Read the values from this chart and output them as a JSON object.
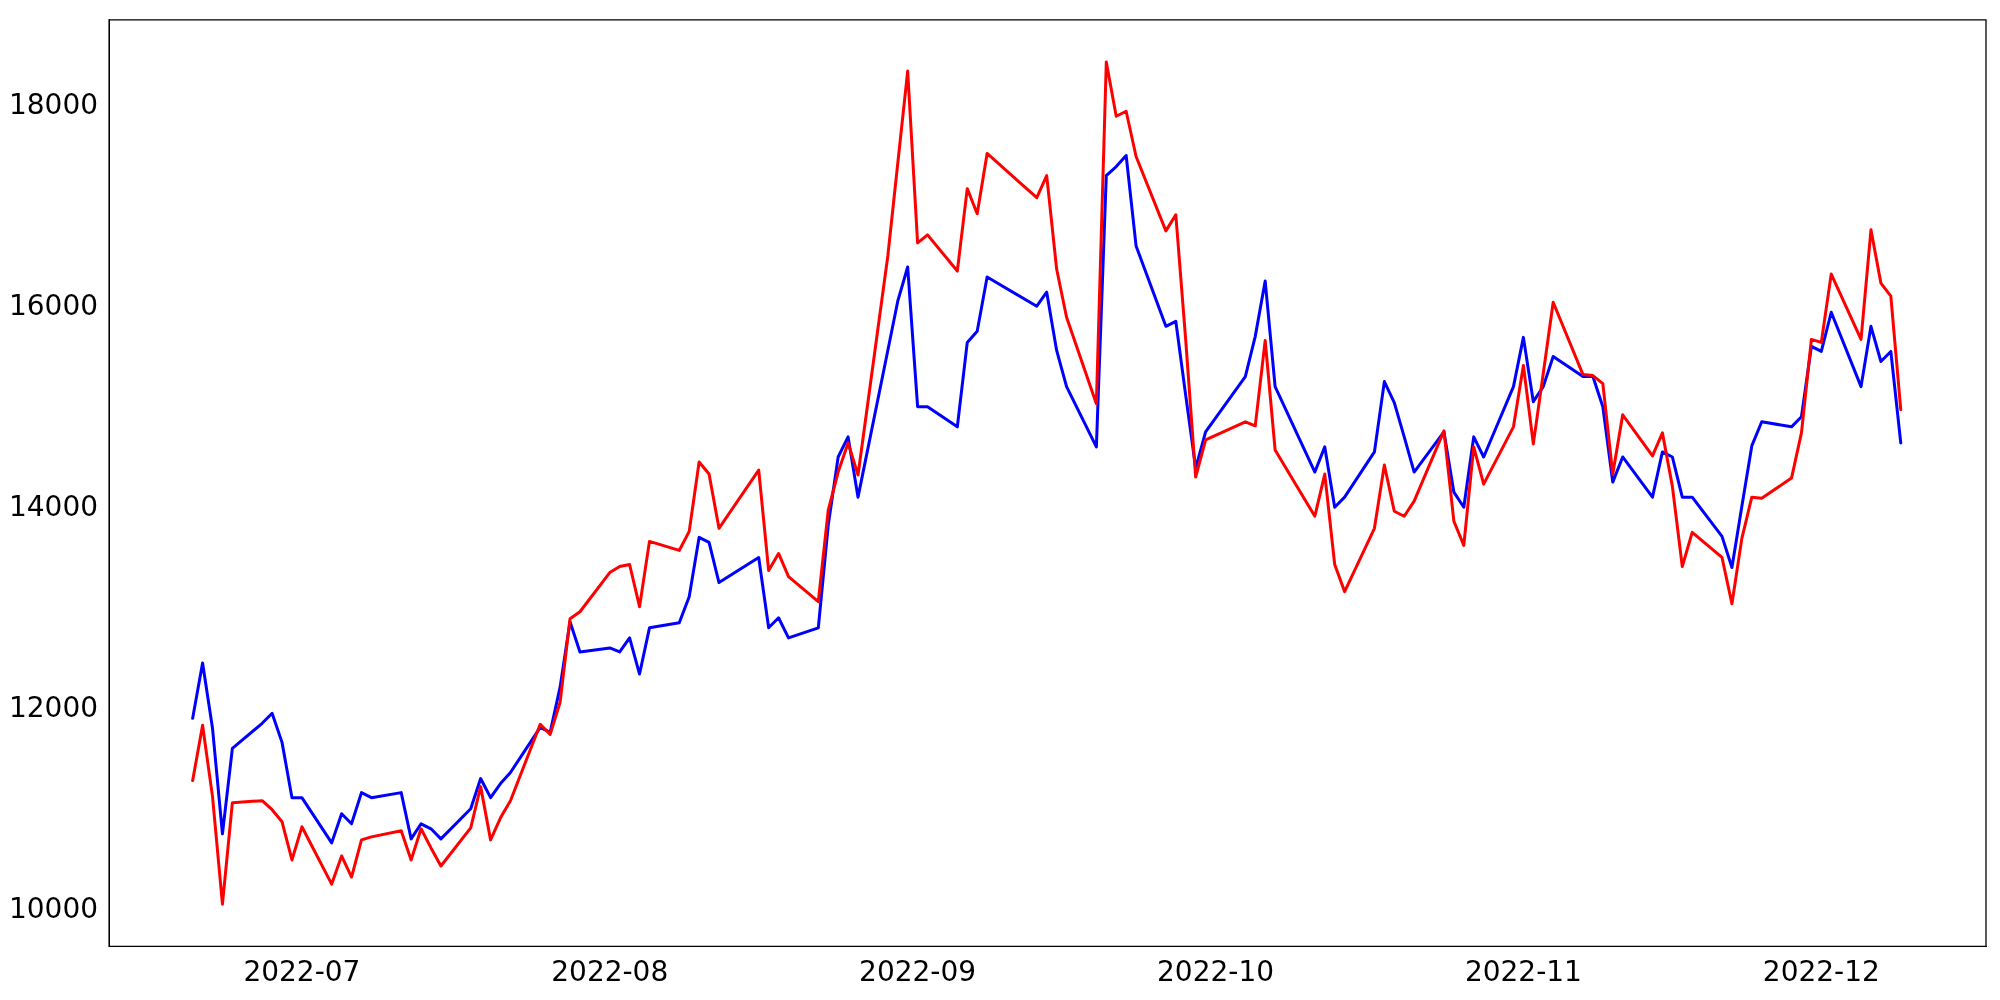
{
  "chart_data": {
    "type": "line",
    "x": [
      "2022-06-20",
      "2022-06-21",
      "2022-06-22",
      "2022-06-23",
      "2022-06-24",
      "2022-06-27",
      "2022-06-28",
      "2022-06-29",
      "2022-06-30",
      "2022-07-01",
      "2022-07-04",
      "2022-07-05",
      "2022-07-06",
      "2022-07-07",
      "2022-07-08",
      "2022-07-11",
      "2022-07-12",
      "2022-07-13",
      "2022-07-14",
      "2022-07-15",
      "2022-07-18",
      "2022-07-19",
      "2022-07-20",
      "2022-07-21",
      "2022-07-22",
      "2022-07-25",
      "2022-07-26",
      "2022-07-27",
      "2022-07-28",
      "2022-07-29",
      "2022-08-01",
      "2022-08-02",
      "2022-08-03",
      "2022-08-04",
      "2022-08-05",
      "2022-08-08",
      "2022-08-09",
      "2022-08-10",
      "2022-08-11",
      "2022-08-12",
      "2022-08-16",
      "2022-08-17",
      "2022-08-18",
      "2022-08-19",
      "2022-08-22",
      "2022-08-23",
      "2022-08-24",
      "2022-08-25",
      "2022-08-26",
      "2022-08-29",
      "2022-08-30",
      "2022-08-31",
      "2022-09-01",
      "2022-09-02",
      "2022-09-05",
      "2022-09-06",
      "2022-09-07",
      "2022-09-08",
      "2022-09-13",
      "2022-09-14",
      "2022-09-15",
      "2022-09-16",
      "2022-09-19",
      "2022-09-20",
      "2022-09-21",
      "2022-09-22",
      "2022-09-23",
      "2022-09-26",
      "2022-09-27",
      "2022-09-28",
      "2022-09-29",
      "2022-09-30",
      "2022-10-04",
      "2022-10-05",
      "2022-10-06",
      "2022-10-07",
      "2022-10-11",
      "2022-10-12",
      "2022-10-13",
      "2022-10-14",
      "2022-10-17",
      "2022-10-18",
      "2022-10-19",
      "2022-10-20",
      "2022-10-21",
      "2022-10-24",
      "2022-10-25",
      "2022-10-26",
      "2022-10-27",
      "2022-10-28",
      "2022-10-31",
      "2022-11-01",
      "2022-11-02",
      "2022-11-03",
      "2022-11-04",
      "2022-11-07",
      "2022-11-08",
      "2022-11-09",
      "2022-11-10",
      "2022-11-11",
      "2022-11-14",
      "2022-11-15",
      "2022-11-16",
      "2022-11-17",
      "2022-11-18",
      "2022-11-21",
      "2022-11-22",
      "2022-11-23",
      "2022-11-24",
      "2022-11-25",
      "2022-11-28",
      "2022-11-29",
      "2022-11-30",
      "2022-12-01",
      "2022-12-02",
      "2022-12-05",
      "2022-12-06",
      "2022-12-07",
      "2022-12-08",
      "2022-12-09"
    ],
    "series": [
      {
        "color": "#ff0000",
        "values": [
          11290,
          11840,
          11130,
          10060,
          11070,
          11090,
          11000,
          10880,
          10500,
          10830,
          10260,
          10540,
          10330,
          10700,
          10730,
          10790,
          10500,
          10810,
          10620,
          10440,
          10820,
          11230,
          10700,
          10920,
          11090,
          11850,
          11750,
          12070,
          12900,
          12970,
          13360,
          13420,
          13440,
          13020,
          13670,
          13580,
          13770,
          14460,
          14340,
          13800,
          14380,
          13380,
          13550,
          13320,
          13070,
          13980,
          14360,
          14650,
          14330,
          16510,
          17430,
          18350,
          16640,
          16720,
          16360,
          17180,
          16930,
          17530,
          17090,
          17310,
          16380,
          15900,
          15040,
          18440,
          17900,
          17950,
          17500,
          16760,
          16920,
          15670,
          14310,
          14680,
          14860,
          14820,
          15670,
          14580,
          13920,
          14340,
          13440,
          13170,
          13800,
          14430,
          13970,
          13920,
          14070,
          14770,
          13870,
          13630,
          14610,
          14240,
          14810,
          15420,
          14640,
          15340,
          16050,
          15330,
          15320,
          15240,
          14340,
          14930,
          14520,
          14750,
          14220,
          13420,
          13760,
          13510,
          13050,
          13700,
          14110,
          14100,
          14300,
          14750,
          15680,
          15650,
          16330,
          15680,
          16770,
          16240,
          16110,
          14980
        ]
      },
      {
        "color": "#0000ff",
        "values": [
          11910,
          12460,
          11810,
          10760,
          11610,
          11860,
          11960,
          11670,
          11120,
          11120,
          10670,
          10960,
          10860,
          11170,
          11120,
          11170,
          10710,
          10860,
          10810,
          10710,
          11010,
          11310,
          11120,
          11260,
          11370,
          11820,
          11770,
          12220,
          12870,
          12570,
          12610,
          12570,
          12710,
          12350,
          12810,
          12860,
          13120,
          13710,
          13660,
          13260,
          13510,
          12810,
          12910,
          12710,
          12810,
          13830,
          14510,
          14710,
          14110,
          15570,
          16060,
          16400,
          15010,
          15010,
          14810,
          15650,
          15760,
          16300,
          16010,
          16150,
          15570,
          15210,
          14610,
          17310,
          17400,
          17510,
          16610,
          15810,
          15860,
          15120,
          14400,
          14760,
          15310,
          15710,
          16260,
          15210,
          14360,
          14610,
          14010,
          14110,
          14560,
          15260,
          15050,
          14710,
          14360,
          14760,
          14160,
          14010,
          14710,
          14510,
          15210,
          15700,
          15060,
          15210,
          15510,
          15310,
          15310,
          15010,
          14260,
          14510,
          14110,
          14560,
          14510,
          14110,
          14110,
          13720,
          13410,
          14020,
          14620,
          14860,
          14810,
          14910,
          15610,
          15560,
          15950,
          15210,
          15810,
          15460,
          15560,
          14650
        ]
      }
    ],
    "xlim": [
      "2022-06-11T14:00",
      "2022-12-17T14:00"
    ],
    "xticks": [
      {
        "value": "2022-07-01",
        "label": "2022-07"
      },
      {
        "value": "2022-08-01",
        "label": "2022-08"
      },
      {
        "value": "2022-09-01",
        "label": "2022-09"
      },
      {
        "value": "2022-10-01",
        "label": "2022-10"
      },
      {
        "value": "2022-11-01",
        "label": "2022-11"
      },
      {
        "value": "2022-12-01",
        "label": "2022-12"
      }
    ],
    "ylim": [
      9640,
      18860
    ],
    "yticks": [
      10000,
      12000,
      14000,
      16000,
      18000
    ],
    "grid": false,
    "legend": false,
    "marker": "none",
    "line_style": "solid"
  }
}
